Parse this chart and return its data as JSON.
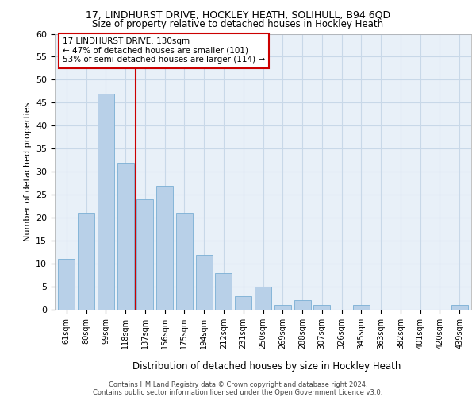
{
  "title1": "17, LINDHURST DRIVE, HOCKLEY HEATH, SOLIHULL, B94 6QD",
  "title2": "Size of property relative to detached houses in Hockley Heath",
  "xlabel": "Distribution of detached houses by size in Hockley Heath",
  "ylabel": "Number of detached properties",
  "categories": [
    "61sqm",
    "80sqm",
    "99sqm",
    "118sqm",
    "137sqm",
    "156sqm",
    "175sqm",
    "194sqm",
    "212sqm",
    "231sqm",
    "250sqm",
    "269sqm",
    "288sqm",
    "307sqm",
    "326sqm",
    "345sqm",
    "363sqm",
    "382sqm",
    "401sqm",
    "420sqm",
    "439sqm"
  ],
  "values": [
    11,
    21,
    47,
    32,
    24,
    27,
    21,
    12,
    8,
    3,
    5,
    1,
    2,
    1,
    0,
    1,
    0,
    0,
    0,
    0,
    1
  ],
  "bar_color": "#b8d0e8",
  "bar_edge_color": "#7aaed4",
  "grid_color": "#c8d8e8",
  "bg_color": "#e8f0f8",
  "vline_x_index": 3.5,
  "vline_color": "#cc0000",
  "annotation_text": "17 LINDHURST DRIVE: 130sqm\n← 47% of detached houses are smaller (101)\n53% of semi-detached houses are larger (114) →",
  "annotation_box_color": "#cc0000",
  "footer": "Contains HM Land Registry data © Crown copyright and database right 2024.\nContains public sector information licensed under the Open Government Licence v3.0.",
  "ylim": [
    0,
    60
  ],
  "yticks": [
    0,
    5,
    10,
    15,
    20,
    25,
    30,
    35,
    40,
    45,
    50,
    55,
    60
  ],
  "title1_fontsize": 9,
  "title2_fontsize": 8.5,
  "ylabel_fontsize": 8,
  "xlabel_fontsize": 8.5,
  "tick_fontsize": 7,
  "annot_fontsize": 7.5,
  "footer_fontsize": 6
}
